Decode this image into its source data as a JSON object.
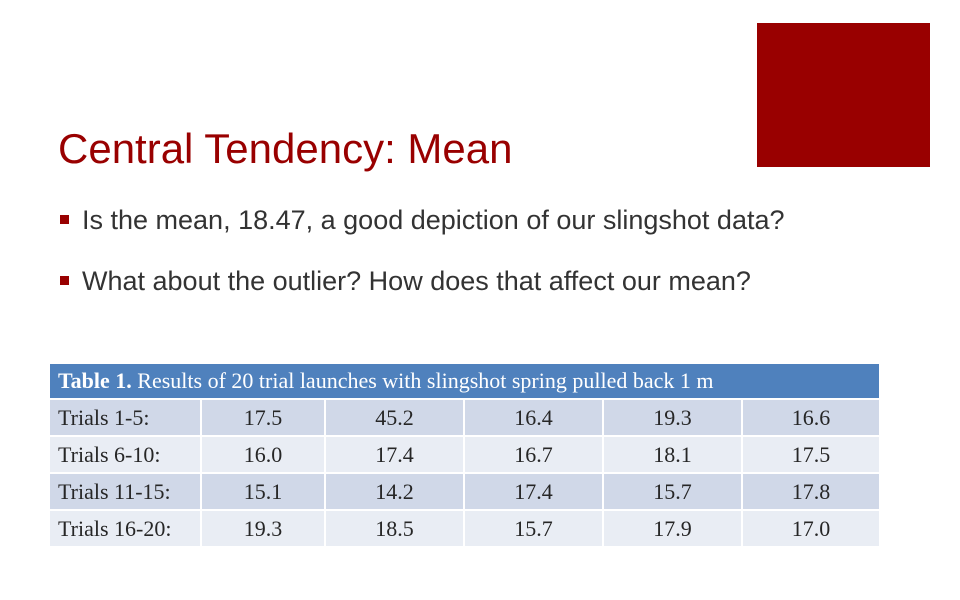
{
  "slide": {
    "title": "Central Tendency: Mean",
    "accent_color": "#990000",
    "bullets": [
      "Is the mean, 18.47, a good depiction of our slingshot data?",
      "What about the outlier? How does that affect our mean?"
    ]
  },
  "table": {
    "caption_label": "Table 1.",
    "caption_text": " Results of 20 trial launches with slingshot spring pulled back 1 m",
    "header_color": "#4f81bd",
    "rows": [
      {
        "label": "Trials 1-5:",
        "values": [
          "17.5",
          "45.2",
          "16.4",
          "19.3",
          "16.6"
        ]
      },
      {
        "label": "Trials 6-10:",
        "values": [
          "16.0",
          "17.4",
          "16.7",
          "18.1",
          "17.5"
        ]
      },
      {
        "label": "Trials 11-15:",
        "values": [
          "15.1",
          "14.2",
          "17.4",
          "15.7",
          "17.8"
        ]
      },
      {
        "label": "Trials 16-20:",
        "values": [
          "19.3",
          "18.5",
          "15.7",
          "17.9",
          "17.0"
        ]
      }
    ]
  }
}
